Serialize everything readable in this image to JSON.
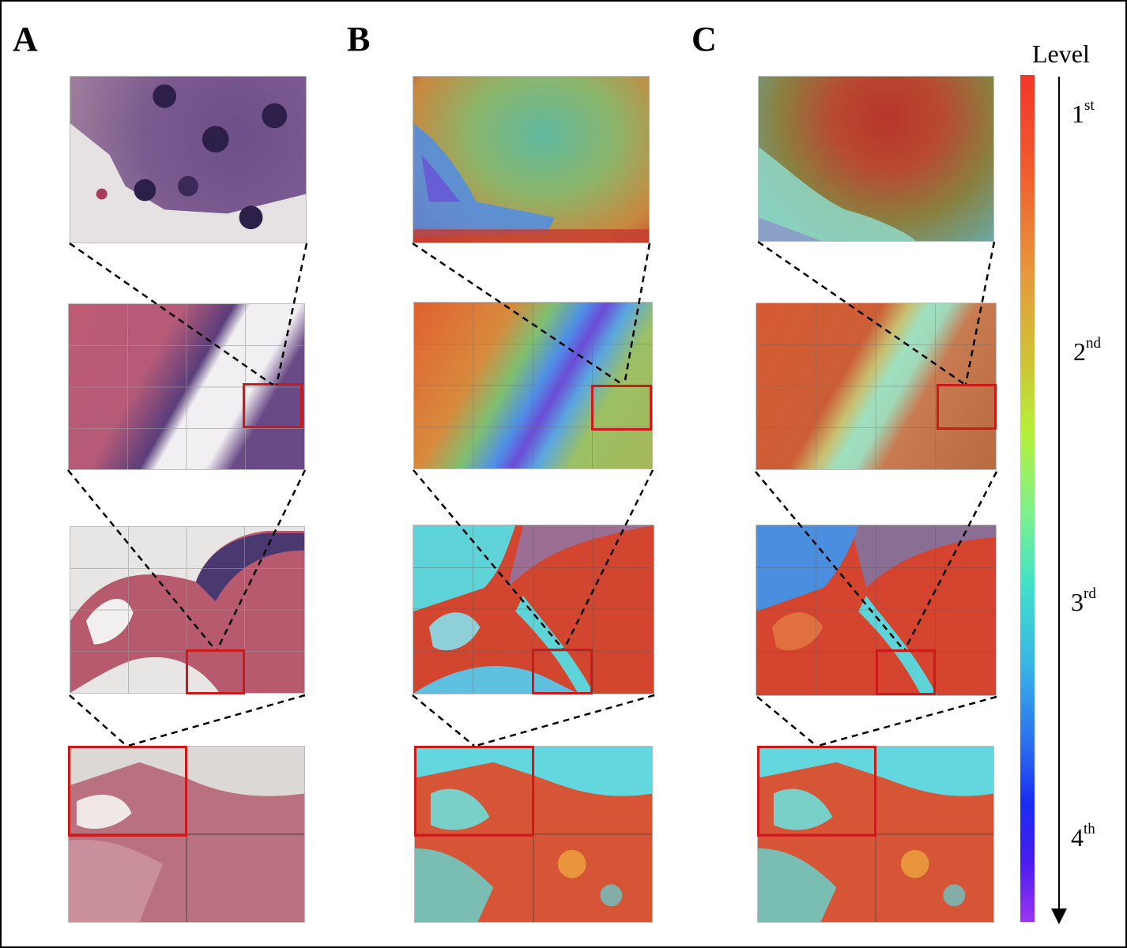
{
  "panels": {
    "a": "A",
    "b": "B",
    "c": "C"
  },
  "legend": {
    "title": "Level",
    "levels": [
      {
        "num": "1",
        "suffix": "st"
      },
      {
        "num": "2",
        "suffix": "nd"
      },
      {
        "num": "3",
        "suffix": "rd"
      },
      {
        "num": "4",
        "suffix": "th"
      }
    ]
  },
  "colors": {
    "roi_box": "#cc1a1a",
    "he_pink": "#b45a78",
    "he_purple": "#5a3a7a",
    "heat_red": "#d2452f",
    "heat_cyan": "#5fd4d8",
    "heat_blue": "#3a6ad8",
    "heat_purple": "#7a4ad0"
  }
}
